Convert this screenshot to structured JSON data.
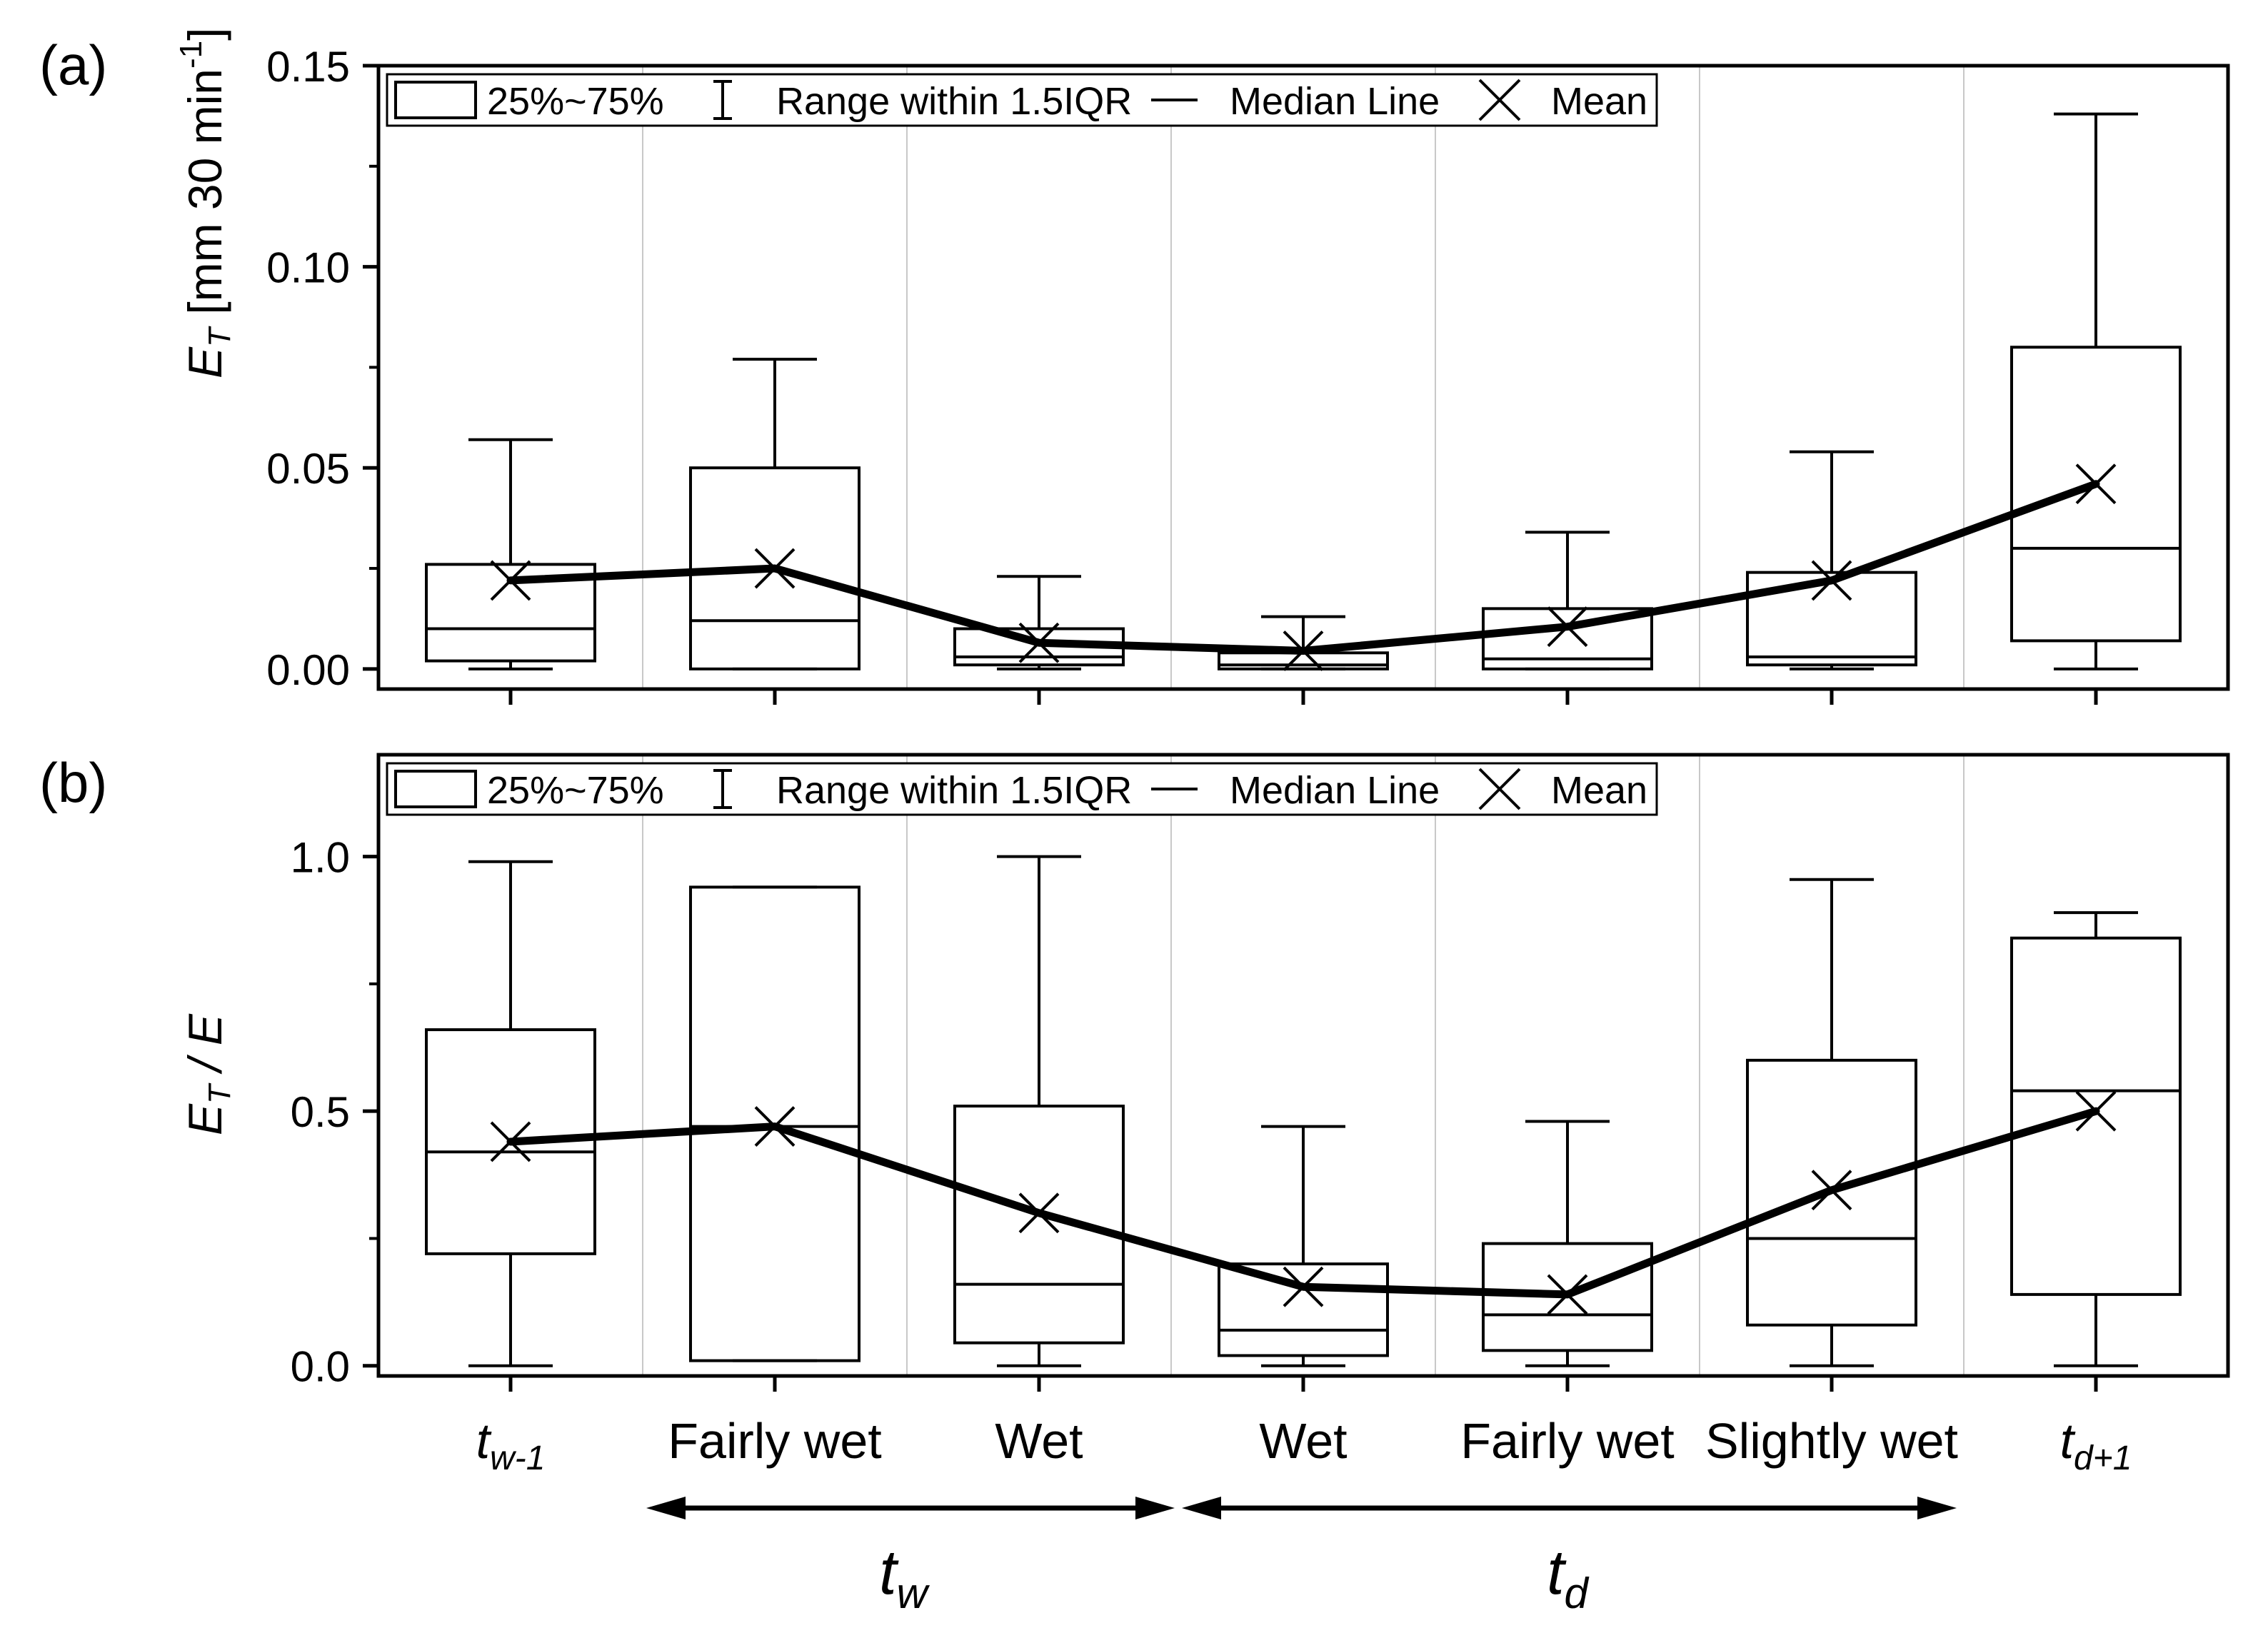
{
  "chart_data": [
    {
      "type": "box",
      "panel_label": "(a)",
      "ylabel_main": "E",
      "ylabel_sub": "T",
      "ylabel_rest": " [mm 30 min",
      "ylabel_sup": "-1",
      "ylabel_end": "]",
      "ylim": [
        -0.005,
        0.15
      ],
      "yticks": [
        0.0,
        0.05,
        0.1,
        0.15
      ],
      "ytick_labels": [
        "0.00",
        "0.05",
        "0.10",
        "0.15"
      ],
      "legend": [
        "25%~75%",
        "Range within 1.5IQR",
        "Median Line",
        "Mean"
      ],
      "boxes": [
        {
          "wlo": 0.0,
          "q1": 0.002,
          "med": 0.01,
          "q3": 0.026,
          "whi": 0.057,
          "mean": 0.022
        },
        {
          "wlo": 0.0,
          "q1": 0.0,
          "med": 0.012,
          "q3": 0.05,
          "whi": 0.077,
          "mean": 0.025
        },
        {
          "wlo": 0.0,
          "q1": 0.001,
          "med": 0.003,
          "q3": 0.01,
          "whi": 0.023,
          "mean": 0.0065
        },
        {
          "wlo": 0.0,
          "q1": 0.0,
          "med": 0.001,
          "q3": 0.004,
          "whi": 0.013,
          "mean": 0.0045
        },
        {
          "wlo": 0.0,
          "q1": 0.0,
          "med": 0.0025,
          "q3": 0.015,
          "whi": 0.034,
          "mean": 0.0105
        },
        {
          "wlo": 0.0,
          "q1": 0.001,
          "med": 0.003,
          "q3": 0.024,
          "whi": 0.054,
          "mean": 0.022
        },
        {
          "wlo": 0.0,
          "q1": 0.007,
          "med": 0.03,
          "q3": 0.08,
          "whi": 0.138,
          "mean": 0.046
        }
      ]
    },
    {
      "type": "box",
      "panel_label": "(b)",
      "ylabel_main": "E",
      "ylabel_sub": "T",
      "ylabel_rest": " / E",
      "ylim": [
        -0.02,
        1.2
      ],
      "yticks": [
        0.0,
        0.5,
        1.0
      ],
      "ytick_labels": [
        "0.0",
        "0.5",
        "1.0"
      ],
      "legend": [
        "25%~75%",
        "Range within 1.5IQR",
        "Median Line",
        "Mean"
      ],
      "boxes": [
        {
          "wlo": 0.0,
          "q1": 0.22,
          "med": 0.42,
          "q3": 0.66,
          "whi": 0.99,
          "mean": 0.44
        },
        {
          "wlo": 0.01,
          "q1": 0.01,
          "med": 0.47,
          "q3": 0.94,
          "whi": 0.94,
          "mean": 0.47
        },
        {
          "wlo": 0.0,
          "q1": 0.045,
          "med": 0.16,
          "q3": 0.51,
          "whi": 1.0,
          "mean": 0.3
        },
        {
          "wlo": 0.0,
          "q1": 0.02,
          "med": 0.07,
          "q3": 0.2,
          "whi": 0.47,
          "mean": 0.155
        },
        {
          "wlo": 0.0,
          "q1": 0.03,
          "med": 0.1,
          "q3": 0.24,
          "whi": 0.48,
          "mean": 0.14
        },
        {
          "wlo": 0.0,
          "q1": 0.08,
          "med": 0.25,
          "q3": 0.6,
          "whi": 0.955,
          "mean": 0.345
        },
        {
          "wlo": 0.0,
          "q1": 0.14,
          "med": 0.54,
          "q3": 0.84,
          "whi": 0.89,
          "mean": 0.5
        }
      ]
    }
  ],
  "categories": [
    {
      "main": "t",
      "sub": "w-1",
      "italic": true
    },
    {
      "main": "Fairly wet",
      "sub": "",
      "italic": false
    },
    {
      "main": "Wet",
      "sub": "",
      "italic": false
    },
    {
      "main": "Wet",
      "sub": "",
      "italic": false
    },
    {
      "main": "Fairly wet",
      "sub": "",
      "italic": false
    },
    {
      "main": "Slightly wet",
      "sub": "",
      "italic": false
    },
    {
      "main": "t",
      "sub": "d+1",
      "italic": true
    }
  ],
  "period_labels": [
    {
      "main": "t",
      "sub": "w"
    },
    {
      "main": "t",
      "sub": "d"
    }
  ],
  "colors": {
    "ink": "#000000",
    "grid": "#c8c8c8",
    "background": "#ffffff"
  }
}
